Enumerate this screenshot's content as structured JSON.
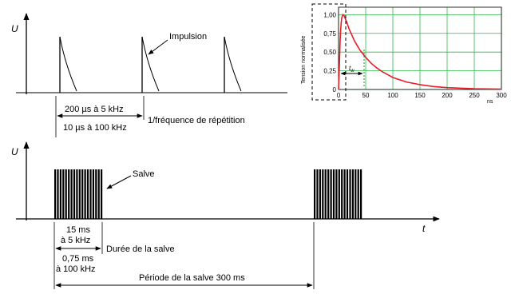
{
  "top_diagram": {
    "axis_label_u": "U",
    "impulse_label": "Impulsion",
    "period_5khz": "200 µs à 5 kHz",
    "period_100khz": "10 µs à 100 kHz",
    "repetition_label": "1/fréquence de répétition"
  },
  "bottom_diagram": {
    "axis_label_u": "U",
    "axis_label_t": "t",
    "burst_label": "Salve",
    "burst_duration_5khz_line1": "15 ms",
    "burst_duration_5khz_line2": "à 5 kHz",
    "burst_duration_100khz_line1": "0,75 ms",
    "burst_duration_100khz_line2": "à 100 kHz",
    "burst_duration_label": "Durée de la salve",
    "burst_period_label": "Période de la salve 300 ms"
  },
  "pulse_chart": {
    "ylabel": "Tension normalisée",
    "xunit": "ns",
    "y_ticks": [
      "1,00",
      "0,75",
      "0,50",
      "0,25",
      "0"
    ],
    "x_ticks": [
      "0",
      "50",
      "100",
      "150",
      "200",
      "250",
      "300"
    ],
    "tw_label": "t",
    "tw_subscript": "w",
    "curve_color": "#e8202a",
    "grid_color": "#2db84a",
    "marker_color": "#1a8a2e"
  },
  "chart_data": {
    "type": "line",
    "title": "",
    "xlabel": "ns",
    "ylabel": "Tension normalisée",
    "xlim": [
      0,
      300
    ],
    "ylim": [
      0,
      1.1
    ],
    "grid": true,
    "series": [
      {
        "x": [
          0,
          1,
          2,
          3,
          4,
          5,
          6,
          8,
          10,
          15,
          20,
          30,
          40,
          50,
          60,
          70,
          80,
          100,
          125,
          150,
          175,
          200,
          250,
          300
        ],
        "y": [
          0.0,
          0.2,
          0.45,
          0.65,
          0.8,
          0.9,
          0.96,
          1.0,
          0.99,
          0.9,
          0.8,
          0.64,
          0.52,
          0.43,
          0.35,
          0.29,
          0.24,
          0.16,
          0.1,
          0.065,
          0.04,
          0.025,
          0.01,
          0.005
        ]
      }
    ]
  }
}
